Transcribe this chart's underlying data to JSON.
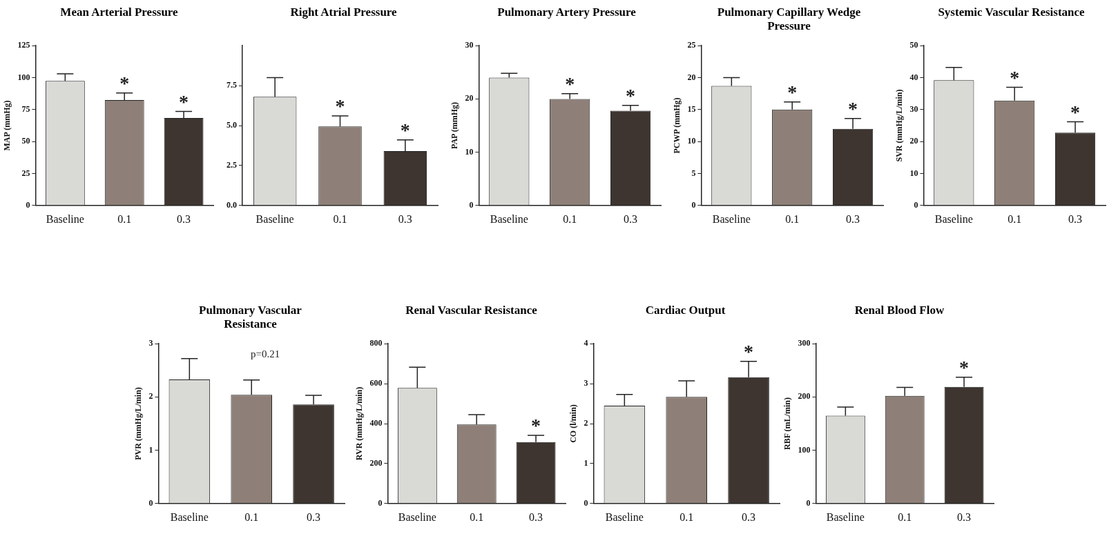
{
  "chart_data": [
    {
      "type": "bar",
      "title": "Mean Arterial Pressure",
      "ylabel": "MAP (mmHg)",
      "categories": [
        "Baseline",
        "0.1",
        "0.3"
      ],
      "values": [
        97.5,
        82.5,
        68.5
      ],
      "errors": [
        5.5,
        5.5,
        5
      ],
      "colors": [
        "#d9d9d6",
        "#8e8078",
        "#3e3530"
      ],
      "ylim": [
        0,
        125
      ],
      "yticks": [
        0,
        25,
        50,
        75,
        100,
        125
      ],
      "annotations": [
        {
          "text": "*",
          "x": "0.1",
          "y": 88
        },
        {
          "text": "*",
          "x": "0.3",
          "y": 73.5
        }
      ]
    },
    {
      "type": "bar",
      "title": "Right Atrial Pressure",
      "categories": [
        "Baseline",
        "0.1",
        "0.3"
      ],
      "values": [
        6.8,
        4.95,
        3.4
      ],
      "errors": [
        1.2,
        0.65,
        0.7
      ],
      "colors": [
        "#d9d9d6",
        "#8e8078",
        "#3e3530"
      ],
      "ylim": [
        0,
        10
      ],
      "yticks": [
        {
          "value": 0,
          "label": "0.0"
        },
        2.5,
        {
          "value": 5,
          "label": "5.0"
        },
        7.5
      ],
      "annotations": [
        {
          "text": "*",
          "x": "0.1",
          "y": 5.6
        },
        {
          "text": "*",
          "x": "0.3",
          "y": 4.1
        }
      ]
    },
    {
      "type": "bar",
      "title": "Pulmonary Artery Pressure",
      "ylabel": "PAP (mmHg)",
      "categories": [
        "Baseline",
        "0.1",
        "0.3"
      ],
      "values": [
        24,
        20,
        17.8
      ],
      "errors": [
        0.8,
        1,
        1
      ],
      "colors": [
        "#d9d9d6",
        "#8e8078",
        "#3e3530"
      ],
      "ylim": [
        0,
        30
      ],
      "yticks": [
        0,
        10,
        20,
        30
      ],
      "annotations": [
        {
          "text": "*",
          "x": "0.1",
          "y": 21
        },
        {
          "text": "*",
          "x": "0.3",
          "y": 18.8
        }
      ]
    },
    {
      "type": "bar",
      "title": "Pulmonary Capillary Wedge Pressure",
      "ylabel": "PCWP (mmHg)",
      "categories": [
        "Baseline",
        "0.1",
        "0.3"
      ],
      "values": [
        18.7,
        15,
        12
      ],
      "errors": [
        1.3,
        1.2,
        1.6
      ],
      "colors": [
        "#d9d9d6",
        "#8e8078",
        "#3e3530"
      ],
      "ylim": [
        0,
        25
      ],
      "yticks": [
        0,
        5,
        10,
        15,
        20,
        25
      ],
      "annotations": [
        {
          "text": "*",
          "x": "0.1",
          "y": 16.2
        },
        {
          "text": "*",
          "x": "0.3",
          "y": 13.6
        }
      ]
    },
    {
      "type": "bar",
      "title": "Systemic Vascular Resistance",
      "ylabel": "SVR (mmHg/L/min)",
      "categories": [
        "Baseline",
        "0.1",
        "0.3"
      ],
      "values": [
        39.2,
        32.8,
        22.8
      ],
      "errors": [
        4,
        4.2,
        3.4
      ],
      "colors": [
        "#d9d9d6",
        "#8e8078",
        "#3e3530"
      ],
      "ylim": [
        0,
        50
      ],
      "yticks": [
        0,
        10,
        20,
        30,
        40,
        50
      ],
      "annotations": [
        {
          "text": "*",
          "x": "0.1",
          "y": 37
        },
        {
          "text": "*",
          "x": "0.3",
          "y": 26.2
        }
      ]
    },
    {
      "type": "bar",
      "title": "Pulmonary Vascular Resistance",
      "ylabel": "PVR (mmHg/L/min)",
      "categories": [
        "Baseline",
        "0.1",
        "0.3"
      ],
      "values": [
        2.33,
        2.04,
        1.86
      ],
      "errors": [
        0.39,
        0.28,
        0.17
      ],
      "colors": [
        "#d9d9d6",
        "#8e8078",
        "#3e3530"
      ],
      "ylim": [
        0,
        3
      ],
      "yticks": [
        0,
        1,
        2,
        3
      ],
      "annotations": [
        "p=0.21"
      ]
    },
    {
      "type": "bar",
      "title": "Renal Vascular Resistance",
      "ylabel": "RVR (mmHg/L/min)",
      "categories": [
        "Baseline",
        "0.1",
        "0.3"
      ],
      "values": [
        579,
        396,
        308
      ],
      "errors": [
        103,
        49,
        33
      ],
      "colors": [
        "#d9d9d6",
        "#8e8078",
        "#3e3530"
      ],
      "ylim": [
        0,
        800
      ],
      "yticks": [
        0,
        200,
        400,
        600,
        800
      ],
      "annotations": [
        {
          "text": "*",
          "x": "0.3",
          "y": 341
        }
      ]
    },
    {
      "type": "bar",
      "title": "Cardiac Output",
      "ylabel": "CO (l/min)",
      "categories": [
        "Baseline",
        "0.1",
        "0.3"
      ],
      "values": [
        2.45,
        2.67,
        3.16
      ],
      "errors": [
        0.28,
        0.4,
        0.4
      ],
      "colors": [
        "#d9d9d6",
        "#8e8078",
        "#3e3530"
      ],
      "ylim": [
        0,
        4
      ],
      "yticks": [
        0,
        1,
        2,
        3,
        4
      ],
      "annotations": [
        {
          "text": "*",
          "x": "0.3",
          "y": 3.56
        }
      ]
    },
    {
      "type": "bar",
      "title": "Renal Blood Flow",
      "ylabel": "RBF (mL/min)",
      "categories": [
        "Baseline",
        "0.1",
        "0.3"
      ],
      "values": [
        165,
        202,
        219
      ],
      "errors": [
        16,
        16,
        18
      ],
      "colors": [
        "#d9d9d6",
        "#8e8078",
        "#3e3530"
      ],
      "ylim": [
        0,
        300
      ],
      "yticks": [
        0,
        100,
        200,
        300
      ],
      "annotations": [
        {
          "text": "*",
          "x": "0.3",
          "y": 237
        }
      ]
    }
  ]
}
